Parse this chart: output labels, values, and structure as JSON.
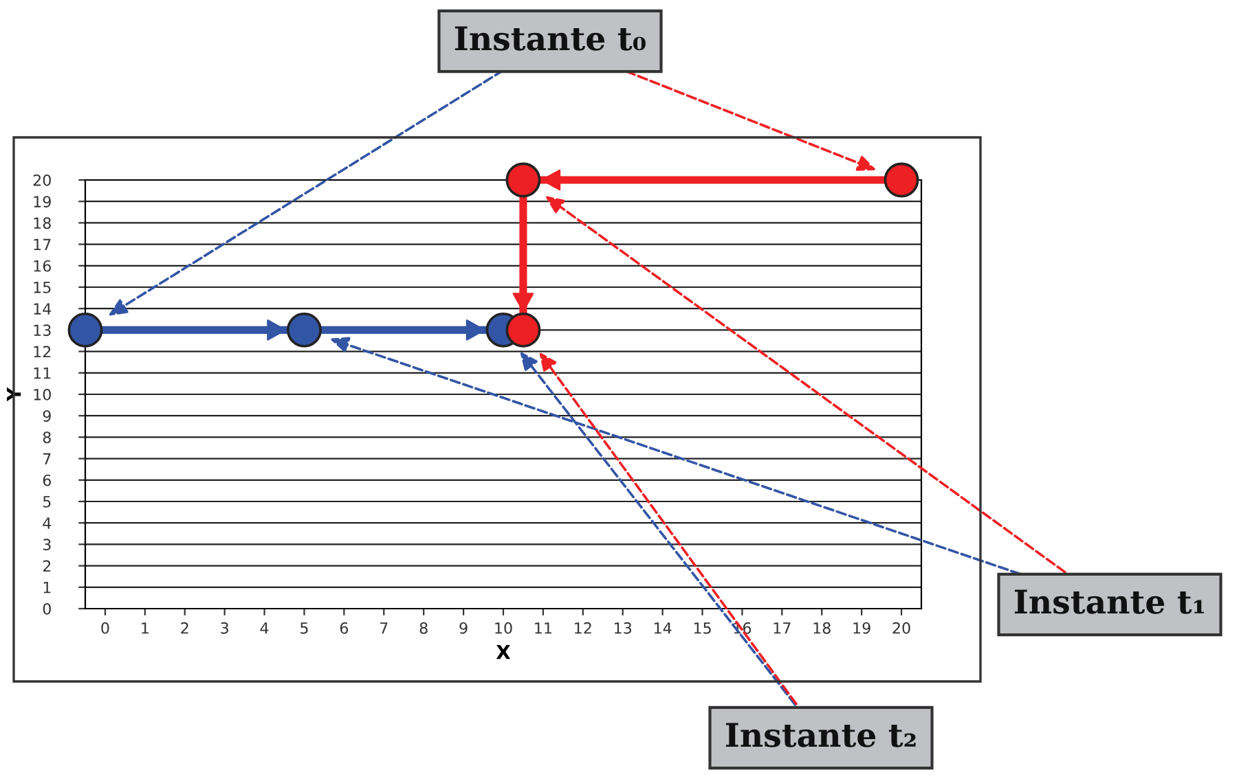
{
  "chart_data": {
    "type": "line",
    "xlabel": "X",
    "ylabel": "Y",
    "xlim": [
      -0.5,
      20.5
    ],
    "xticks": [
      0,
      1,
      2,
      3,
      4,
      5,
      6,
      7,
      8,
      9,
      10,
      11,
      12,
      13,
      14,
      15,
      16,
      17,
      18,
      19,
      20
    ],
    "ylim": [
      0,
      20
    ],
    "yticks": [
      0,
      1,
      2,
      3,
      4,
      5,
      6,
      7,
      8,
      9,
      10,
      11,
      12,
      13,
      14,
      15,
      16,
      17,
      18,
      19,
      20
    ],
    "grid": "y",
    "marker": "circle",
    "line_style": "solid",
    "series": [
      {
        "color": "#3355a5",
        "x": [
          -0.5,
          5,
          10
        ],
        "values": [
          13,
          13,
          13
        ]
      },
      {
        "color": "#ee2024",
        "x": [
          20,
          10.5,
          10.5
        ],
        "values": [
          20,
          20,
          13
        ]
      }
    ],
    "annotations": [
      "Instante t₀",
      "Instante t₁",
      "Instante t₂"
    ]
  }
}
